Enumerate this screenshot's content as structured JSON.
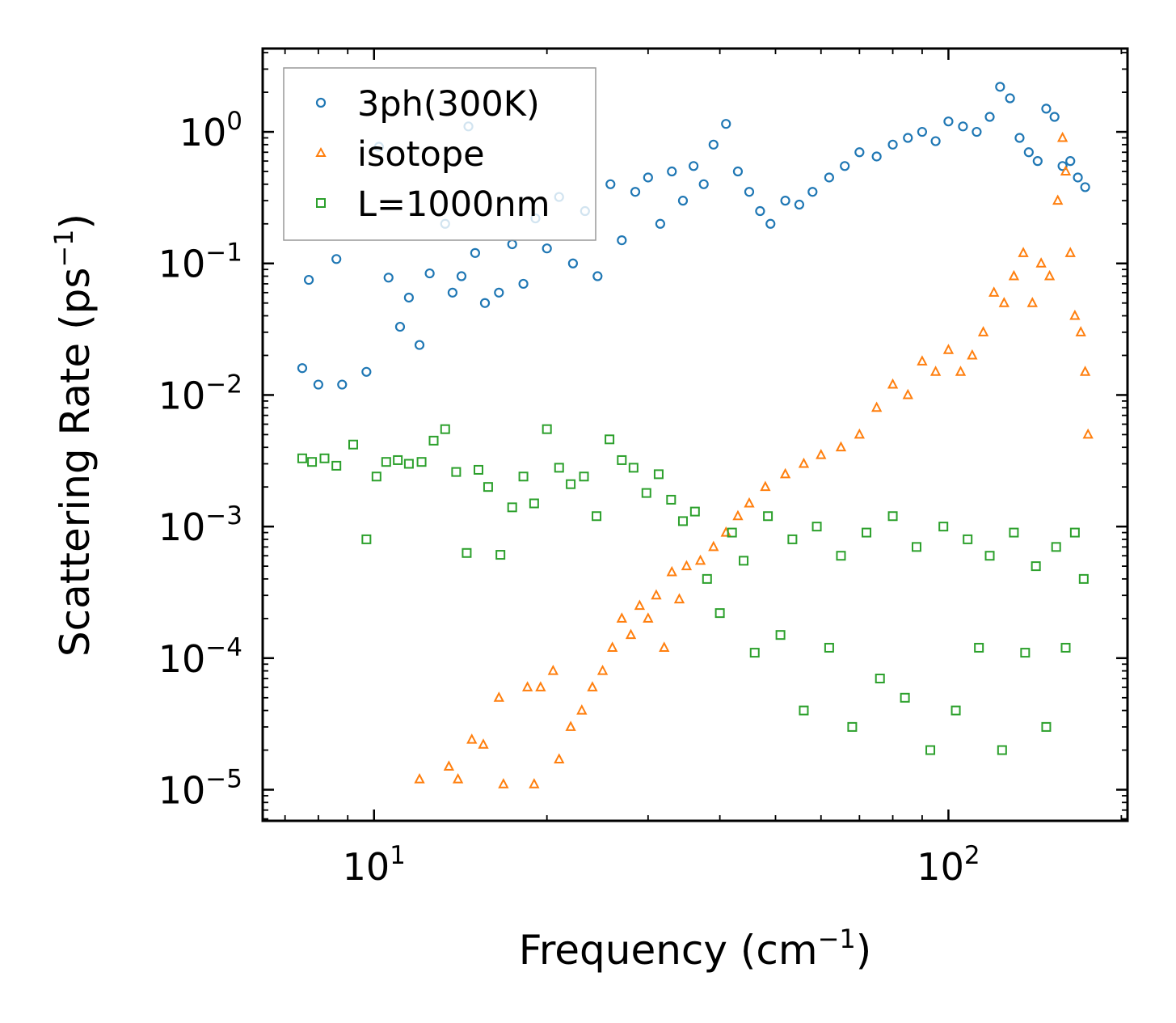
{
  "chart_data": {
    "type": "scatter",
    "title": "",
    "xlabel": "Frequency (cm",
    "xlabel_sup": "−1",
    "xlabel_end": ")",
    "ylabel": "Scattering Rate (ps",
    "ylabel_sup": "−1",
    "ylabel_end": ")",
    "xscale": "log",
    "yscale": "log",
    "xlim": [
      6.4,
      205
    ],
    "ylim": [
      5.8e-06,
      4.3
    ],
    "grid": false,
    "legend_position": "top-left",
    "x_ticks": [
      {
        "value": 10,
        "base": "10",
        "exp": "1"
      },
      {
        "value": 100,
        "base": "10",
        "exp": "2"
      }
    ],
    "y_ticks": [
      {
        "value": 1,
        "base": "10",
        "exp": "0"
      },
      {
        "value": 0.1,
        "base": "10",
        "exp": "−1"
      },
      {
        "value": 0.01,
        "base": "10",
        "exp": "−2"
      },
      {
        "value": 0.001,
        "base": "10",
        "exp": "−3"
      },
      {
        "value": 0.0001,
        "base": "10",
        "exp": "−4"
      },
      {
        "value": 1e-05,
        "base": "10",
        "exp": "−5"
      }
    ],
    "series": [
      {
        "name": "3ph(300K)",
        "marker": "circle",
        "color": "#1f77b4",
        "x": [
          7.5,
          7.7,
          8,
          8.6,
          8.8,
          9.7,
          10.2,
          10.6,
          11.1,
          11.5,
          12,
          12.5,
          13.3,
          13.7,
          14.2,
          14.6,
          15,
          15.6,
          16.5,
          17.4,
          18.2,
          19.1,
          20,
          21,
          22.2,
          23.3,
          24.5,
          25.8,
          27,
          28.5,
          30,
          31.5,
          33,
          34.5,
          36,
          37.5,
          39,
          41,
          43,
          45,
          47,
          49,
          52,
          55,
          58,
          62,
          66,
          70,
          75,
          80,
          85,
          90,
          95,
          100,
          106,
          112,
          118,
          123,
          128,
          133,
          138,
          143,
          148,
          153,
          158,
          163,
          168,
          173
        ],
        "y": [
          0.016,
          0.075,
          0.012,
          0.108,
          0.012,
          0.015,
          0.77,
          0.078,
          0.033,
          0.055,
          0.024,
          0.084,
          0.2,
          0.06,
          0.08,
          1.1,
          0.12,
          0.05,
          0.06,
          0.14,
          0.07,
          0.22,
          0.13,
          0.32,
          0.1,
          0.25,
          0.08,
          0.4,
          0.15,
          0.35,
          0.45,
          0.2,
          0.5,
          0.3,
          0.55,
          0.4,
          0.8,
          1.15,
          0.5,
          0.35,
          0.25,
          0.2,
          0.3,
          0.28,
          0.35,
          0.45,
          0.55,
          0.7,
          0.65,
          0.8,
          0.9,
          1.0,
          0.85,
          1.2,
          1.1,
          1.0,
          1.3,
          2.2,
          1.8,
          0.9,
          0.7,
          0.6,
          1.5,
          1.3,
          0.55,
          0.6,
          0.45,
          0.38
        ]
      },
      {
        "name": "isotope",
        "marker": "triangle",
        "color": "#ff7f0e",
        "x": [
          12,
          13.5,
          14,
          14.8,
          15.5,
          16.5,
          16.8,
          18.5,
          19,
          19.5,
          20.5,
          21,
          22,
          23,
          24,
          25,
          26,
          27,
          28,
          29,
          30,
          31,
          32,
          33,
          34,
          35,
          37,
          39,
          41,
          43,
          45,
          48,
          52,
          56,
          60,
          65,
          70,
          75,
          80,
          85,
          90,
          95,
          100,
          105,
          110,
          115,
          120,
          125,
          130,
          135,
          140,
          145,
          150,
          155,
          158,
          160,
          163,
          166,
          170,
          173,
          175
        ],
        "y": [
          1.2e-05,
          1.5e-05,
          1.2e-05,
          2.4e-05,
          2.2e-05,
          5e-05,
          1.1e-05,
          6e-05,
          1.1e-05,
          6e-05,
          8e-05,
          1.7e-05,
          3e-05,
          4e-05,
          6e-05,
          8e-05,
          0.00012,
          0.0002,
          0.00015,
          0.00025,
          0.0002,
          0.0003,
          0.00012,
          0.00045,
          0.00028,
          0.0005,
          0.00055,
          0.0007,
          0.0009,
          0.0012,
          0.0015,
          0.002,
          0.0025,
          0.003,
          0.0035,
          0.004,
          0.005,
          0.008,
          0.012,
          0.01,
          0.018,
          0.015,
          0.022,
          0.015,
          0.02,
          0.03,
          0.06,
          0.05,
          0.08,
          0.12,
          0.05,
          0.1,
          0.08,
          0.3,
          0.9,
          0.5,
          0.12,
          0.04,
          0.03,
          0.015,
          0.005
        ]
      },
      {
        "name": "L=1000nm",
        "marker": "square",
        "color": "#2ca02c",
        "x": [
          7.5,
          7.8,
          8.2,
          8.6,
          9.2,
          9.7,
          10.1,
          10.5,
          11,
          11.5,
          12.1,
          12.7,
          13.3,
          13.9,
          14.5,
          15.2,
          15.8,
          16.6,
          17.4,
          18.2,
          19,
          20,
          21,
          22,
          23.2,
          24.4,
          25.7,
          27,
          28.3,
          29.8,
          31.3,
          32.9,
          34.5,
          36.2,
          38,
          40,
          42,
          44,
          46,
          48.5,
          51,
          53.5,
          56,
          59,
          62,
          65,
          68,
          72,
          76,
          80,
          84,
          88,
          93,
          98,
          103,
          108,
          113,
          118,
          124,
          130,
          136,
          142,
          148,
          154,
          160,
          166,
          172
        ],
        "y": [
          0.0033,
          0.0031,
          0.0033,
          0.0029,
          0.0042,
          0.0008,
          0.0024,
          0.0031,
          0.0032,
          0.003,
          0.0031,
          0.0045,
          0.0055,
          0.0026,
          0.00063,
          0.0027,
          0.002,
          0.00061,
          0.0014,
          0.0024,
          0.0015,
          0.0055,
          0.0028,
          0.0021,
          0.0024,
          0.0012,
          0.0046,
          0.0032,
          0.0028,
          0.0018,
          0.0025,
          0.0016,
          0.0011,
          0.0013,
          0.0004,
          0.00022,
          0.0009,
          0.00055,
          0.00011,
          0.0012,
          0.00015,
          0.0008,
          4e-05,
          0.001,
          0.00012,
          0.0006,
          3e-05,
          0.0009,
          7e-05,
          0.0012,
          5e-05,
          0.0007,
          2e-05,
          0.001,
          4e-05,
          0.0008,
          0.00012,
          0.0006,
          2e-05,
          0.0009,
          0.00011,
          0.0005,
          3e-05,
          0.0007,
          0.00012,
          0.0009,
          0.0004
        ]
      }
    ]
  }
}
